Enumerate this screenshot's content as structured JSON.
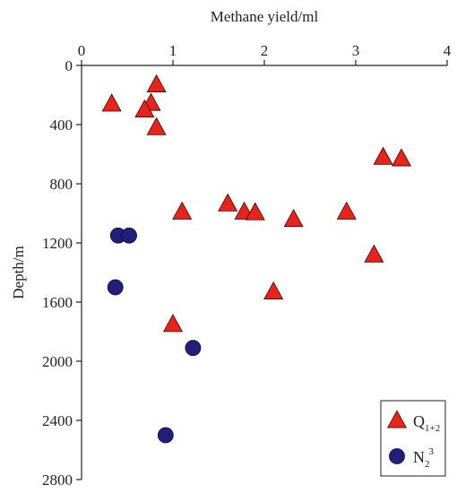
{
  "chart_data": {
    "type": "scatter",
    "xlabel": "Methane yield/ml",
    "ylabel": "Depth/m",
    "xlim": [
      0,
      4
    ],
    "ylim": [
      0,
      2800
    ],
    "y_inverted": true,
    "x_axis_position": "top",
    "x_ticks": [
      0,
      1,
      2,
      3,
      4
    ],
    "y_ticks": [
      0,
      400,
      800,
      1200,
      1600,
      2000,
      2400,
      2800
    ],
    "legend_position": "bottom-right",
    "series": [
      {
        "name": "Q1+2",
        "legend_main": "Q",
        "legend_sub": "1+2",
        "marker": "triangle",
        "color": "#e8231c",
        "points": [
          {
            "x": 0.33,
            "y": 260
          },
          {
            "x": 0.82,
            "y": 130
          },
          {
            "x": 0.76,
            "y": 255
          },
          {
            "x": 0.69,
            "y": 300
          },
          {
            "x": 0.82,
            "y": 420
          },
          {
            "x": 3.3,
            "y": 620
          },
          {
            "x": 3.5,
            "y": 630
          },
          {
            "x": 1.1,
            "y": 990
          },
          {
            "x": 1.6,
            "y": 935
          },
          {
            "x": 1.78,
            "y": 990
          },
          {
            "x": 1.9,
            "y": 995
          },
          {
            "x": 2.32,
            "y": 1040
          },
          {
            "x": 2.9,
            "y": 990
          },
          {
            "x": 3.2,
            "y": 1280
          },
          {
            "x": 2.1,
            "y": 1530
          },
          {
            "x": 1.0,
            "y": 1750
          }
        ]
      },
      {
        "name": "N2 3",
        "legend_main": "N",
        "legend_sub": "2",
        "legend_sup": "3",
        "marker": "circle",
        "color": "#201f7a",
        "points": [
          {
            "x": 0.4,
            "y": 1150
          },
          {
            "x": 0.52,
            "y": 1150
          },
          {
            "x": 0.37,
            "y": 1500
          },
          {
            "x": 1.22,
            "y": 1910
          },
          {
            "x": 0.92,
            "y": 2500
          }
        ]
      }
    ]
  }
}
